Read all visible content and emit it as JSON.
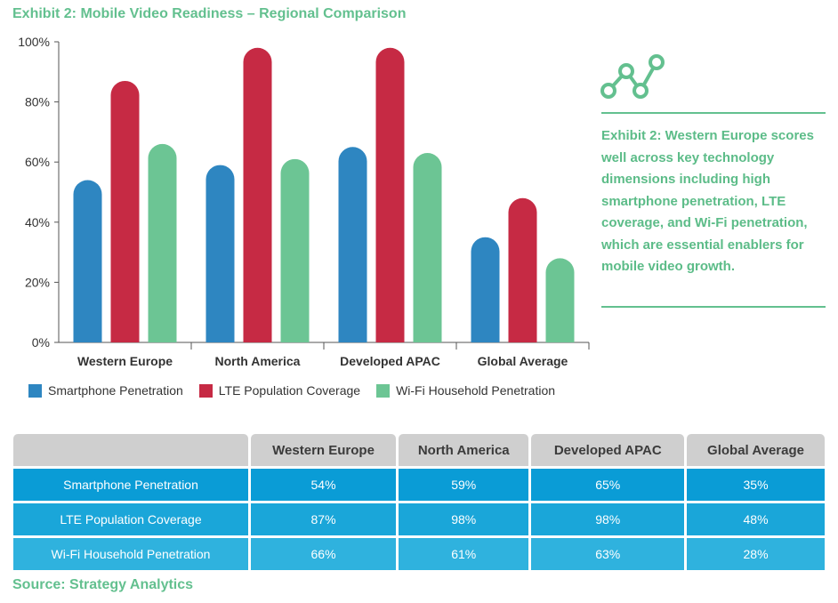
{
  "title": "Exhibit 2: Mobile Video Readiness – Regional Comparison",
  "chart_data": {
    "type": "bar",
    "categories": [
      "Western Europe",
      "North America",
      "Developed APAC",
      "Global Average"
    ],
    "series": [
      {
        "name": "Smartphone Penetration",
        "values": [
          54,
          59,
          65,
          35
        ],
        "color": "#2e86c1"
      },
      {
        "name": "LTE Population Coverage",
        "values": [
          87,
          98,
          98,
          48
        ],
        "color": "#c62a44"
      },
      {
        "name": "Wi-Fi Household Penetration",
        "values": [
          66,
          61,
          63,
          28
        ],
        "color": "#6cc594"
      }
    ],
    "y_ticks": [
      "0%",
      "20%",
      "40%",
      "60%",
      "80%",
      "100%"
    ],
    "ylim": [
      0,
      100
    ],
    "grid": false,
    "legend_position": "bottom-left"
  },
  "legend": {
    "items": [
      {
        "label": "Smartphone Penetration",
        "color": "#2e86c1"
      },
      {
        "label": "LTE Population Coverage",
        "color": "#c62a44"
      },
      {
        "label": "Wi-Fi Household Penetration",
        "color": "#6cc594"
      }
    ]
  },
  "sidebar": {
    "icon": "line-chart-icon",
    "text": "Exhibit 2: Western Europe scores well across key technology dimensions including high smartphone penetration, LTE coverage, and Wi-Fi penetration, which are essential enablers for mobile video growth."
  },
  "table": {
    "headers": [
      "Western Europe",
      "North America",
      "Developed APAC",
      "Global Average"
    ],
    "rows": [
      {
        "label": "Smartphone Penetration",
        "cells": [
          "54%",
          "59%",
          "65%",
          "35%"
        ]
      },
      {
        "label": "LTE Population Coverage",
        "cells": [
          "87%",
          "98%",
          "98%",
          "48%"
        ]
      },
      {
        "label": "Wi-Fi Household Penetration",
        "cells": [
          "66%",
          "61%",
          "63%",
          "28%"
        ]
      }
    ]
  },
  "source": "Source: Strategy Analytics"
}
